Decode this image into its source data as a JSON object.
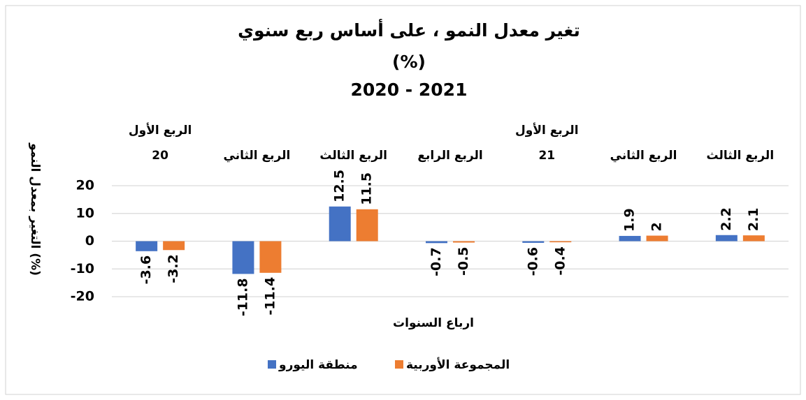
{
  "chart_data": {
    "type": "bar",
    "title": [
      "تغير معدل النمو ، على أساس ربع سنوي",
      "(%)",
      "2020 - 2021"
    ],
    "x_label": "ارباع السنوات",
    "y_label": "التغير بمعدل النمو (%)",
    "categories": [
      [
        "الربع الأول",
        "20"
      ],
      [
        "الربع الثاني"
      ],
      [
        "الربع الثالث"
      ],
      [
        "الربع الرابع"
      ],
      [
        "الربع الأول",
        "21"
      ],
      [
        "الربع الثاني"
      ],
      [
        "الربع الثالث"
      ]
    ],
    "series": [
      {
        "name": "منطقة اليورو",
        "color": "#4472c4",
        "values": [
          -3.6,
          -11.8,
          12.5,
          -0.7,
          -0.6,
          1.9,
          2.2
        ]
      },
      {
        "name": "المجموعة الأوربية",
        "color": "#ed7d31",
        "values": [
          -3.2,
          -11.4,
          11.5,
          -0.5,
          -0.4,
          2,
          2.1
        ]
      }
    ],
    "ylim": [
      -20,
      20
    ],
    "yticks": [
      -20,
      -10,
      0,
      10,
      20
    ],
    "grid": true
  }
}
